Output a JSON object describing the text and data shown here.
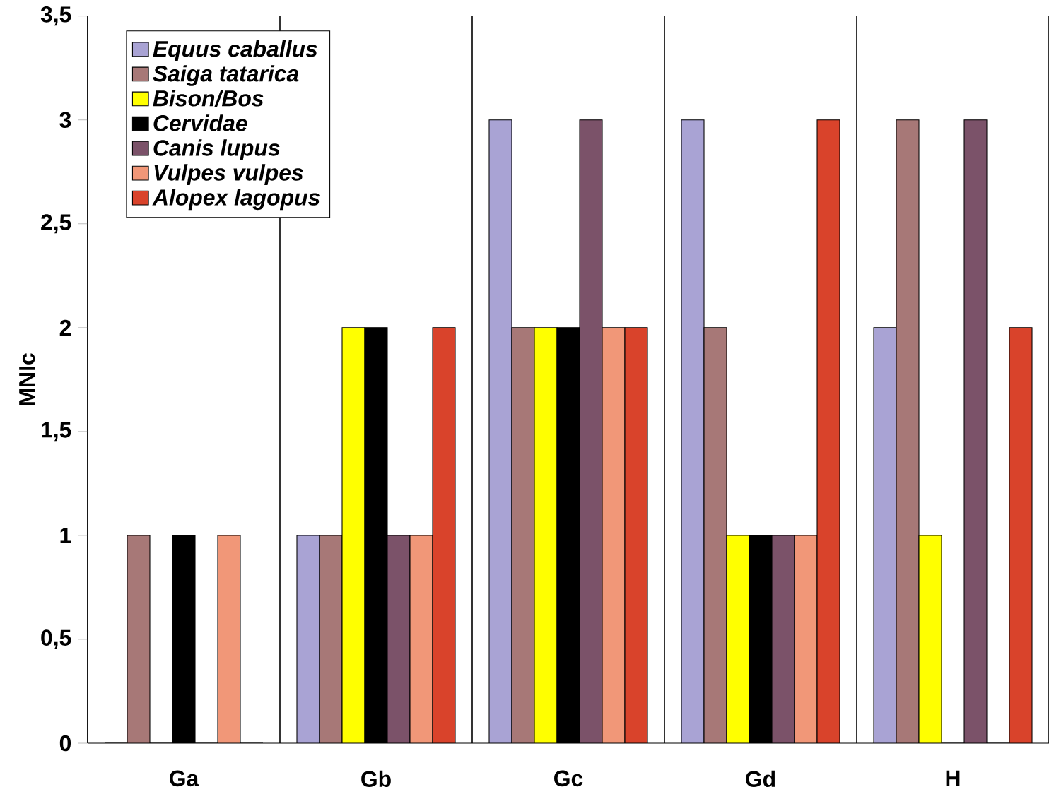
{
  "chart_data": {
    "type": "bar",
    "ylabel": "MNIc",
    "categories": [
      "Ga",
      "Gb",
      "Gc",
      "Gd",
      "H"
    ],
    "series": [
      {
        "name": "Equus caballus",
        "color": "#a9a3d4",
        "values": [
          0,
          1,
          3,
          3,
          2
        ]
      },
      {
        "name": "Saiga tatarica",
        "color": "#a77877",
        "values": [
          1,
          1,
          2,
          2,
          3
        ]
      },
      {
        "name": "Bison/Bos",
        "color": "#ffff00",
        "values": [
          0,
          2,
          2,
          1,
          1
        ]
      },
      {
        "name": "Cervidae",
        "color": "#000000",
        "values": [
          1,
          2,
          2,
          1,
          0
        ]
      },
      {
        "name": "Canis lupus",
        "color": "#7b5269",
        "values": [
          0,
          1,
          3,
          1,
          3
        ]
      },
      {
        "name": "Vulpes vulpes",
        "color": "#f19778",
        "values": [
          1,
          1,
          2,
          1,
          0
        ]
      },
      {
        "name": "Alopex lagopus",
        "color": "#d9432b",
        "values": [
          0,
          2,
          2,
          3,
          2
        ]
      }
    ],
    "ylim": [
      0,
      3.5
    ],
    "yticks": [
      0,
      {
        "value": 0.5,
        "label": "0,5"
      },
      1,
      {
        "value": 1.5,
        "label": "1,5"
      },
      2,
      {
        "value": 2.5,
        "label": "2,5"
      },
      3,
      {
        "value": 3.5,
        "label": "3,5"
      }
    ],
    "grid": "x",
    "legend": "top left"
  }
}
